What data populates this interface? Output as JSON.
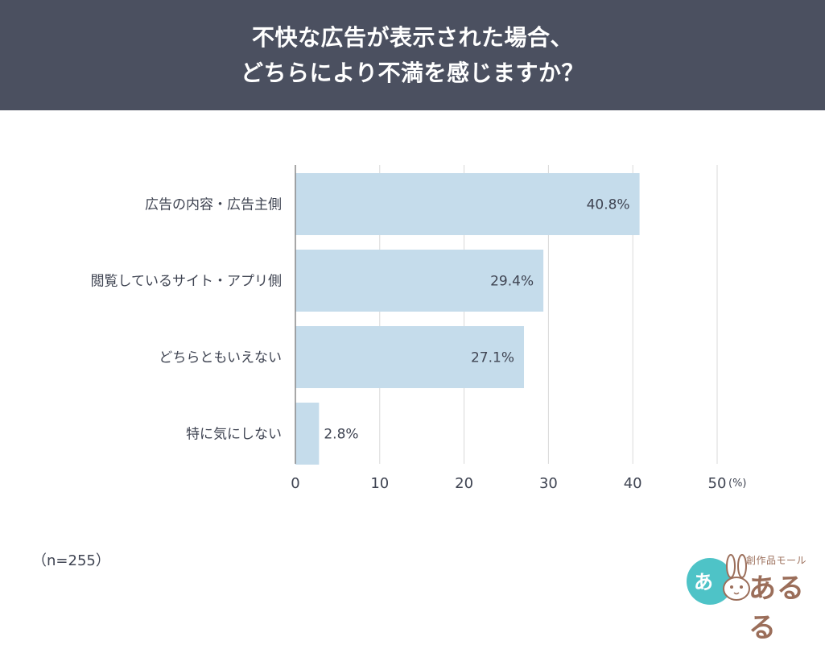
{
  "header": {
    "title": "不快な広告が表示された場合、\nどちらにより不満を感じますか？"
  },
  "chart_data": {
    "type": "bar",
    "orientation": "horizontal",
    "title": "不快な広告が表示された場合、\nどちらにより不満を感じますか？",
    "categories": [
      "広告の内容・広告主側",
      "閲覧しているサイト・アプリ側",
      "どちらともいえない",
      "特に気にしない"
    ],
    "values": [
      40.8,
      29.4,
      27.1,
      2.8
    ],
    "value_labels": [
      "40.8%",
      "29.4%",
      "27.1%",
      "2.8%"
    ],
    "x_ticks": [
      "0",
      "10",
      "20",
      "30",
      "40",
      "50"
    ],
    "x_tick_values": [
      0,
      10,
      20,
      30,
      40,
      50
    ],
    "x_unit": "(%)",
    "xlim": [
      0,
      50
    ],
    "grid": true,
    "bar_color": "#c5dceb",
    "grid_color": "#d9d9d9",
    "label_color": "#3f4452"
  },
  "footer": {
    "sample_size": "（n=255）"
  },
  "logo": {
    "small_text": "創作品モール",
    "main_text": "あるる",
    "circle_text": "あ",
    "circle_color": "#4ec3c7",
    "text_color": "#9b6e5a"
  }
}
